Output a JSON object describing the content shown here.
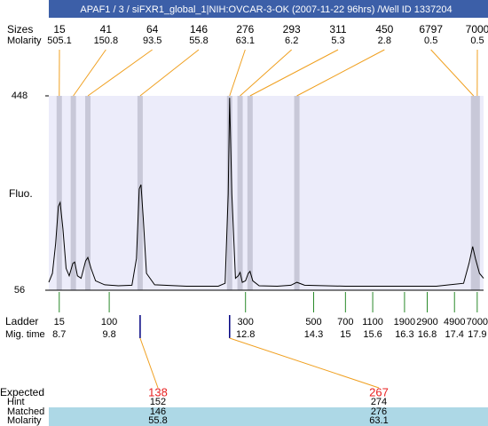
{
  "header": "APAF1 / 3 / siFXR1_global_1|NIH:OVCAR-3-OK (2007-11-22 96hrs) /Well ID 1337204",
  "chart_data": {
    "type": "line",
    "ylabel": "Fluo.",
    "xlim": [
      8.47,
      18.04
    ],
    "ylim": [
      56,
      448
    ],
    "yticks": [
      448,
      56
    ],
    "color": "#000000",
    "x": [
      8.47,
      8.55,
      8.62,
      8.68,
      8.72,
      8.78,
      8.85,
      8.92,
      9.0,
      9.04,
      9.1,
      9.18,
      9.28,
      9.33,
      9.4,
      9.5,
      9.7,
      10.0,
      10.3,
      10.4,
      10.46,
      10.5,
      10.55,
      10.62,
      10.8,
      11.5,
      12.2,
      12.35,
      12.42,
      12.45,
      12.5,
      12.58,
      12.64,
      12.68,
      12.73,
      12.8,
      12.86,
      12.9,
      12.96,
      13.1,
      13.5,
      13.8,
      13.93,
      14.1,
      15,
      16,
      17,
      17.6,
      17.72,
      17.8,
      17.86,
      17.95,
      18.04
    ],
    "values": [
      72,
      90,
      150,
      225,
      233,
      180,
      100,
      85,
      110,
      113,
      85,
      80,
      115,
      122,
      100,
      75,
      67,
      65,
      66,
      120,
      260,
      269,
      200,
      90,
      67,
      64,
      64,
      70,
      250,
      444,
      250,
      80,
      85,
      92,
      72,
      75,
      90,
      94,
      75,
      65,
      64,
      66,
      72,
      66,
      64,
      64,
      64,
      70,
      110,
      144,
      120,
      90,
      80
    ],
    "peaks": {
      "size_label": "Sizes",
      "molarity_label": "Molarity",
      "sizes": [
        15,
        41,
        64,
        146,
        276,
        293,
        311,
        450,
        6797,
        7000
      ],
      "molarities": [
        505.1,
        150.8,
        93.5,
        55.8,
        63.1,
        6.2,
        5.3,
        2.8,
        0.5,
        0.5
      ],
      "times": [
        8.7,
        9.01,
        9.33,
        10.48,
        12.45,
        12.68,
        12.9,
        13.93,
        17.82,
        17.9
      ]
    },
    "ladder": {
      "label": "Ladder",
      "time_label": "Mig. time",
      "sizes": [
        15,
        100,
        300,
        500,
        700,
        1100,
        1900,
        2900,
        4900,
        7000
      ],
      "times": [
        8.7,
        9.8,
        12.8,
        14.3,
        15,
        15.6,
        16.3,
        16.8,
        17.4,
        17.9
      ]
    },
    "expected": {
      "labels": [
        "Expected",
        "Hint",
        "Matched",
        "Molarity"
      ],
      "expected": [
        138,
        267
      ],
      "hint": [
        152,
        274
      ],
      "matched": [
        146,
        276
      ],
      "molarity": [
        55.8,
        63.1
      ],
      "times": [
        10.48,
        12.45
      ]
    }
  }
}
